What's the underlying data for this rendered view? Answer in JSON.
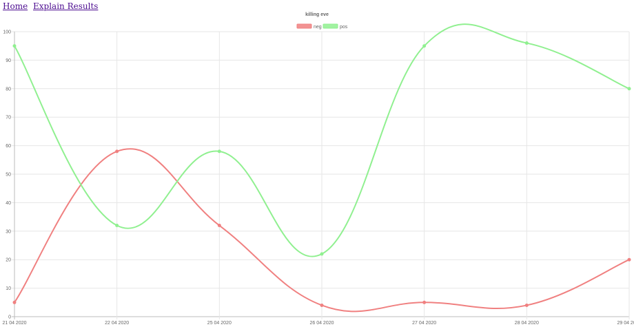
{
  "nav": {
    "home": "Home",
    "explain": "Explain Results"
  },
  "colors": {
    "neg": "#f08080",
    "pos": "#90f090"
  },
  "chart_data": {
    "type": "line",
    "title": "killing eve",
    "categories": [
      "21 04 2020",
      "22 04 2020",
      "25 04 2020",
      "26 04 2020",
      "27 04 2020",
      "28 04 2020",
      "29 04 2020"
    ],
    "series": [
      {
        "name": "neg",
        "values": [
          5,
          58,
          32,
          4,
          5,
          4,
          20
        ]
      },
      {
        "name": "pos",
        "values": [
          95,
          32,
          58,
          22,
          95,
          96,
          80
        ]
      }
    ],
    "ylim": [
      0,
      100
    ],
    "yticks": [
      0,
      10,
      20,
      30,
      40,
      50,
      60,
      70,
      80,
      90,
      100
    ],
    "grid": true,
    "legend": "top-center",
    "smooth": true
  }
}
